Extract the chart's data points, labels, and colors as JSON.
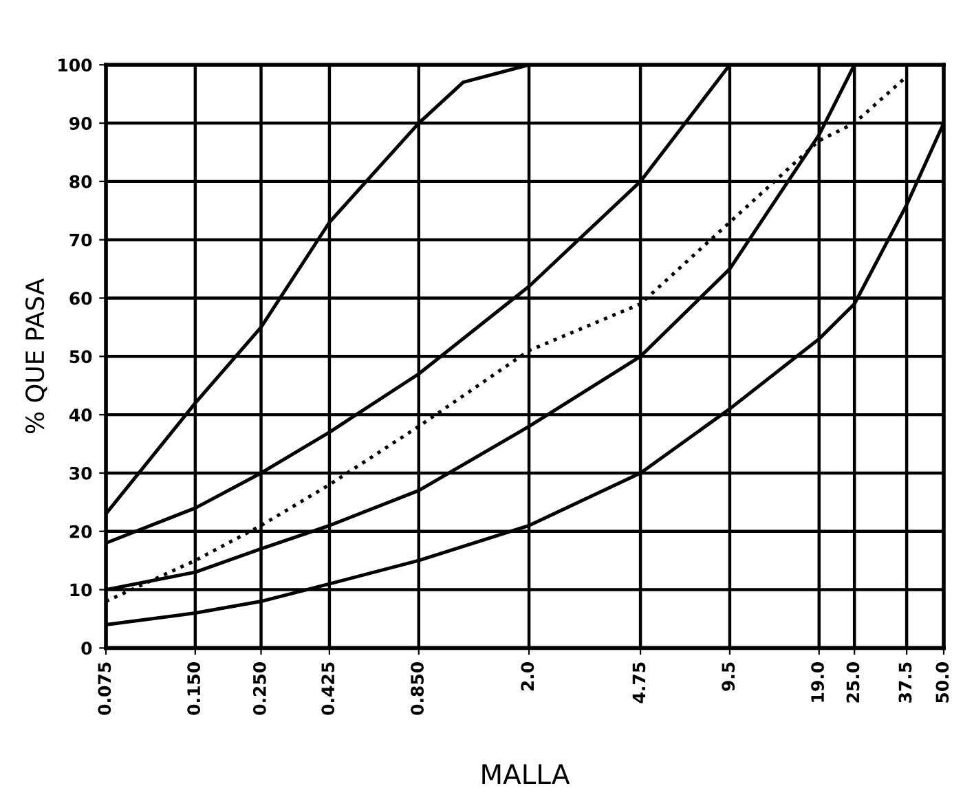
{
  "chart_data": {
    "type": "line",
    "xlabel": "MALLA",
    "ylabel": "% QUE PASA",
    "log": "x",
    "grid": true,
    "legend": false,
    "marker": "none",
    "xlim": [
      0.075,
      50
    ],
    "ylim": [
      0,
      100
    ],
    "xticks": [
      {
        "value": 0.075,
        "label": "0.075"
      },
      {
        "value": 0.15,
        "label": "0.150"
      },
      {
        "value": 0.25,
        "label": "0.250"
      },
      {
        "value": 0.425,
        "label": "0.425"
      },
      {
        "value": 0.85,
        "label": "0.850"
      },
      {
        "value": 2,
        "label": "2.0"
      },
      {
        "value": 4.75,
        "label": "4.75"
      },
      {
        "value": 9.5,
        "label": "9.5"
      },
      {
        "value": 19,
        "label": "19.0"
      },
      {
        "value": 25,
        "label": "25.0"
      },
      {
        "value": 37.5,
        "label": "37.5"
      },
      {
        "value": 50,
        "label": "50.0"
      }
    ],
    "yticks": [
      0,
      10,
      20,
      30,
      40,
      50,
      60,
      70,
      80,
      90,
      100
    ],
    "series": [
      {
        "color": "#000000",
        "line_style": "solid",
        "x": [
          0.075,
          0.15,
          0.25,
          0.425,
          0.85,
          1.2,
          2.0
        ],
        "values": [
          23,
          42,
          55,
          73,
          90,
          97,
          100
        ]
      },
      {
        "color": "#000000",
        "line_style": "solid",
        "x": [
          0.075,
          0.15,
          0.25,
          0.425,
          0.85,
          2.0,
          4.75,
          9.5
        ],
        "values": [
          18,
          24,
          30,
          37,
          47,
          62,
          80,
          100
        ]
      },
      {
        "color": "#000000",
        "line_style": "dotted",
        "x": [
          0.075,
          0.15,
          0.25,
          0.425,
          0.85,
          2.0,
          4.75,
          9.5,
          19,
          25,
          37.5
        ],
        "values": [
          8,
          15,
          21,
          28,
          38,
          51,
          59,
          73,
          87,
          90,
          98
        ]
      },
      {
        "color": "#000000",
        "line_style": "solid",
        "x": [
          0.075,
          0.15,
          0.25,
          0.425,
          0.85,
          2.0,
          4.75,
          9.5,
          19,
          25
        ],
        "values": [
          10,
          13,
          17,
          21,
          27,
          38,
          50,
          65,
          88,
          100
        ]
      },
      {
        "color": "#000000",
        "line_style": "solid",
        "x": [
          0.075,
          0.15,
          0.25,
          0.425,
          0.85,
          2.0,
          4.75,
          9.5,
          19,
          25,
          37.5,
          50
        ],
        "values": [
          4,
          6,
          8,
          11,
          15,
          21,
          30,
          41,
          53,
          59,
          76,
          90
        ]
      }
    ]
  }
}
